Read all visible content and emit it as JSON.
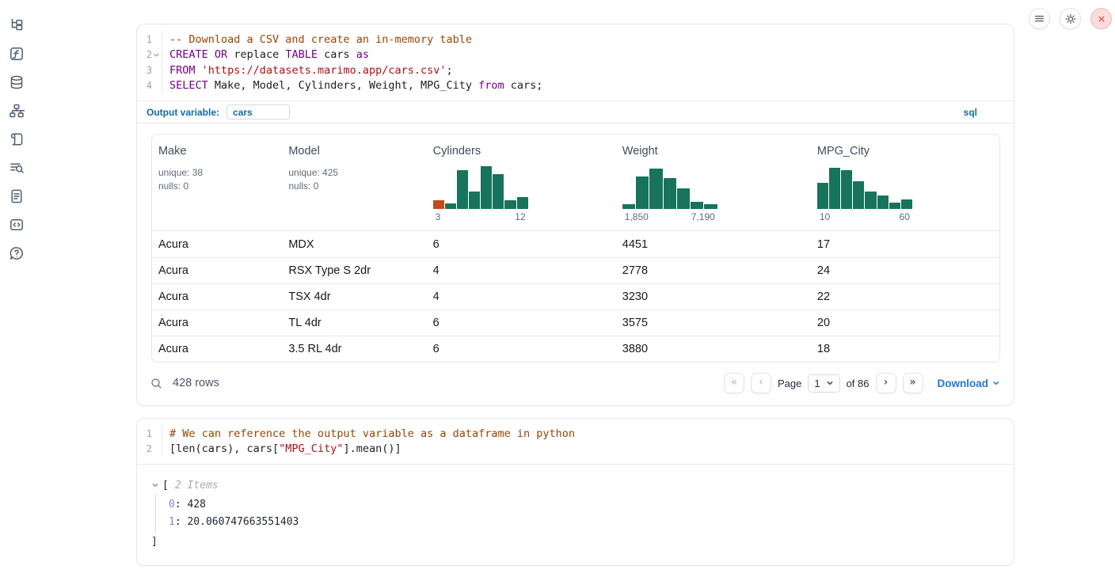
{
  "colors": {
    "hist_green": "#17735c",
    "hist_orange": "#c7491f",
    "marimo_blue": "#0e6ca6",
    "link_blue": "#2277d2",
    "close_red": "#d9534f"
  },
  "sidebar": {
    "icons": [
      "file-explorer",
      "variables",
      "datasources",
      "dependency-graph",
      "scratchpad",
      "logs",
      "documentation",
      "snippets",
      "help"
    ]
  },
  "top_controls": {
    "buttons": [
      "notebook-menu",
      "settings",
      "shutdown"
    ]
  },
  "cells": [
    {
      "type": "sql",
      "code": {
        "lines": [
          {
            "num": "1",
            "fold": false,
            "tokens": [
              {
                "s": "comment",
                "t": "-- Download a CSV and create an in-memory table"
              }
            ]
          },
          {
            "num": "2",
            "fold": true,
            "tokens": [
              {
                "s": "keyword",
                "t": "CREATE"
              },
              {
                "s": "plain",
                "t": " "
              },
              {
                "s": "keyword",
                "t": "OR"
              },
              {
                "s": "plain",
                "t": " replace "
              },
              {
                "s": "keyword",
                "t": "TABLE"
              },
              {
                "s": "plain",
                "t": " cars "
              },
              {
                "s": "keyword",
                "t": "as"
              }
            ]
          },
          {
            "num": "3",
            "fold": false,
            "tokens": [
              {
                "s": "keyword",
                "t": "FROM"
              },
              {
                "s": "plain",
                "t": " "
              },
              {
                "s": "string",
                "t": "'https://datasets.marimo.app/cars.csv'"
              },
              {
                "s": "plain",
                "t": ";"
              }
            ]
          },
          {
            "num": "4",
            "fold": false,
            "tokens": [
              {
                "s": "keyword",
                "t": "SELECT"
              },
              {
                "s": "plain",
                "t": " Make, Model, Cylinders, Weight, MPG_City "
              },
              {
                "s": "keyword",
                "t": "from"
              },
              {
                "s": "plain",
                "t": " cars;"
              }
            ]
          }
        ]
      },
      "output_variable": {
        "label": "Output variable:",
        "value": "cars"
      },
      "language_badge": "sql",
      "table": {
        "columns": [
          {
            "name": "Make",
            "kind": "text",
            "meta": [
              "unique: 38",
              "nulls: 0"
            ]
          },
          {
            "name": "Model",
            "kind": "text",
            "meta": [
              "unique: 425",
              "nulls: 0"
            ]
          },
          {
            "name": "Cylinders",
            "kind": "histogram",
            "min_label": "3",
            "max_label": "12",
            "bars": [
              {
                "h": 0.2,
                "c": "orange"
              },
              {
                "h": 0.13,
                "c": "green"
              },
              {
                "h": 0.91,
                "c": "green"
              },
              {
                "h": 0.4,
                "c": "green"
              },
              {
                "h": 1.0,
                "c": "green"
              },
              {
                "h": 0.82,
                "c": "green"
              },
              {
                "h": 0.2,
                "c": "green"
              },
              {
                "h": 0.27,
                "c": "green"
              }
            ]
          },
          {
            "name": "Weight",
            "kind": "histogram",
            "min_label": "1,850",
            "max_label": "7,190",
            "bars": [
              {
                "h": 0.11,
                "c": "green"
              },
              {
                "h": 0.75,
                "c": "green"
              },
              {
                "h": 0.95,
                "c": "green"
              },
              {
                "h": 0.73,
                "c": "green"
              },
              {
                "h": 0.49,
                "c": "green"
              },
              {
                "h": 0.16,
                "c": "green"
              },
              {
                "h": 0.11,
                "c": "green"
              }
            ]
          },
          {
            "name": "MPG_City",
            "kind": "histogram",
            "min_label": "10",
            "max_label": "60",
            "bars": [
              {
                "h": 0.62,
                "c": "green"
              },
              {
                "h": 0.96,
                "c": "green"
              },
              {
                "h": 0.91,
                "c": "green"
              },
              {
                "h": 0.65,
                "c": "green"
              },
              {
                "h": 0.4,
                "c": "green"
              },
              {
                "h": 0.31,
                "c": "green"
              },
              {
                "h": 0.15,
                "c": "green"
              },
              {
                "h": 0.22,
                "c": "green"
              }
            ]
          }
        ],
        "rows": [
          [
            "Acura",
            "MDX",
            "6",
            "4451",
            "17"
          ],
          [
            "Acura",
            "RSX Type S 2dr",
            "4",
            "2778",
            "24"
          ],
          [
            "Acura",
            "TSX 4dr",
            "4",
            "3230",
            "22"
          ],
          [
            "Acura",
            "TL 4dr",
            "6",
            "3575",
            "20"
          ],
          [
            "Acura",
            "3.5 RL 4dr",
            "6",
            "3880",
            "18"
          ]
        ]
      },
      "footer": {
        "row_count": "428 rows",
        "page_label": "Page",
        "page_value": "1",
        "total_label": "of 86",
        "pagination": {
          "first": "«",
          "prev": "‹",
          "next": "›",
          "last": "»"
        },
        "download_label": "Download"
      }
    },
    {
      "type": "python",
      "code": {
        "lines": [
          {
            "num": "1",
            "fold": false,
            "tokens": [
              {
                "s": "comment",
                "t": "# We can reference the output variable as a dataframe in python"
              }
            ]
          },
          {
            "num": "2",
            "fold": false,
            "tokens": [
              {
                "s": "plain",
                "t": "[len(cars), cars["
              },
              {
                "s": "string",
                "t": "\"MPG_City\""
              },
              {
                "s": "plain",
                "t": "].mean()]"
              }
            ]
          }
        ]
      },
      "output_tree": {
        "open_bracket": "[",
        "items_label": "2 Items",
        "entries": [
          {
            "index": "0",
            "value": "428"
          },
          {
            "index": "1",
            "value": "20.060747663551403"
          }
        ],
        "close_bracket": "]"
      }
    }
  ]
}
